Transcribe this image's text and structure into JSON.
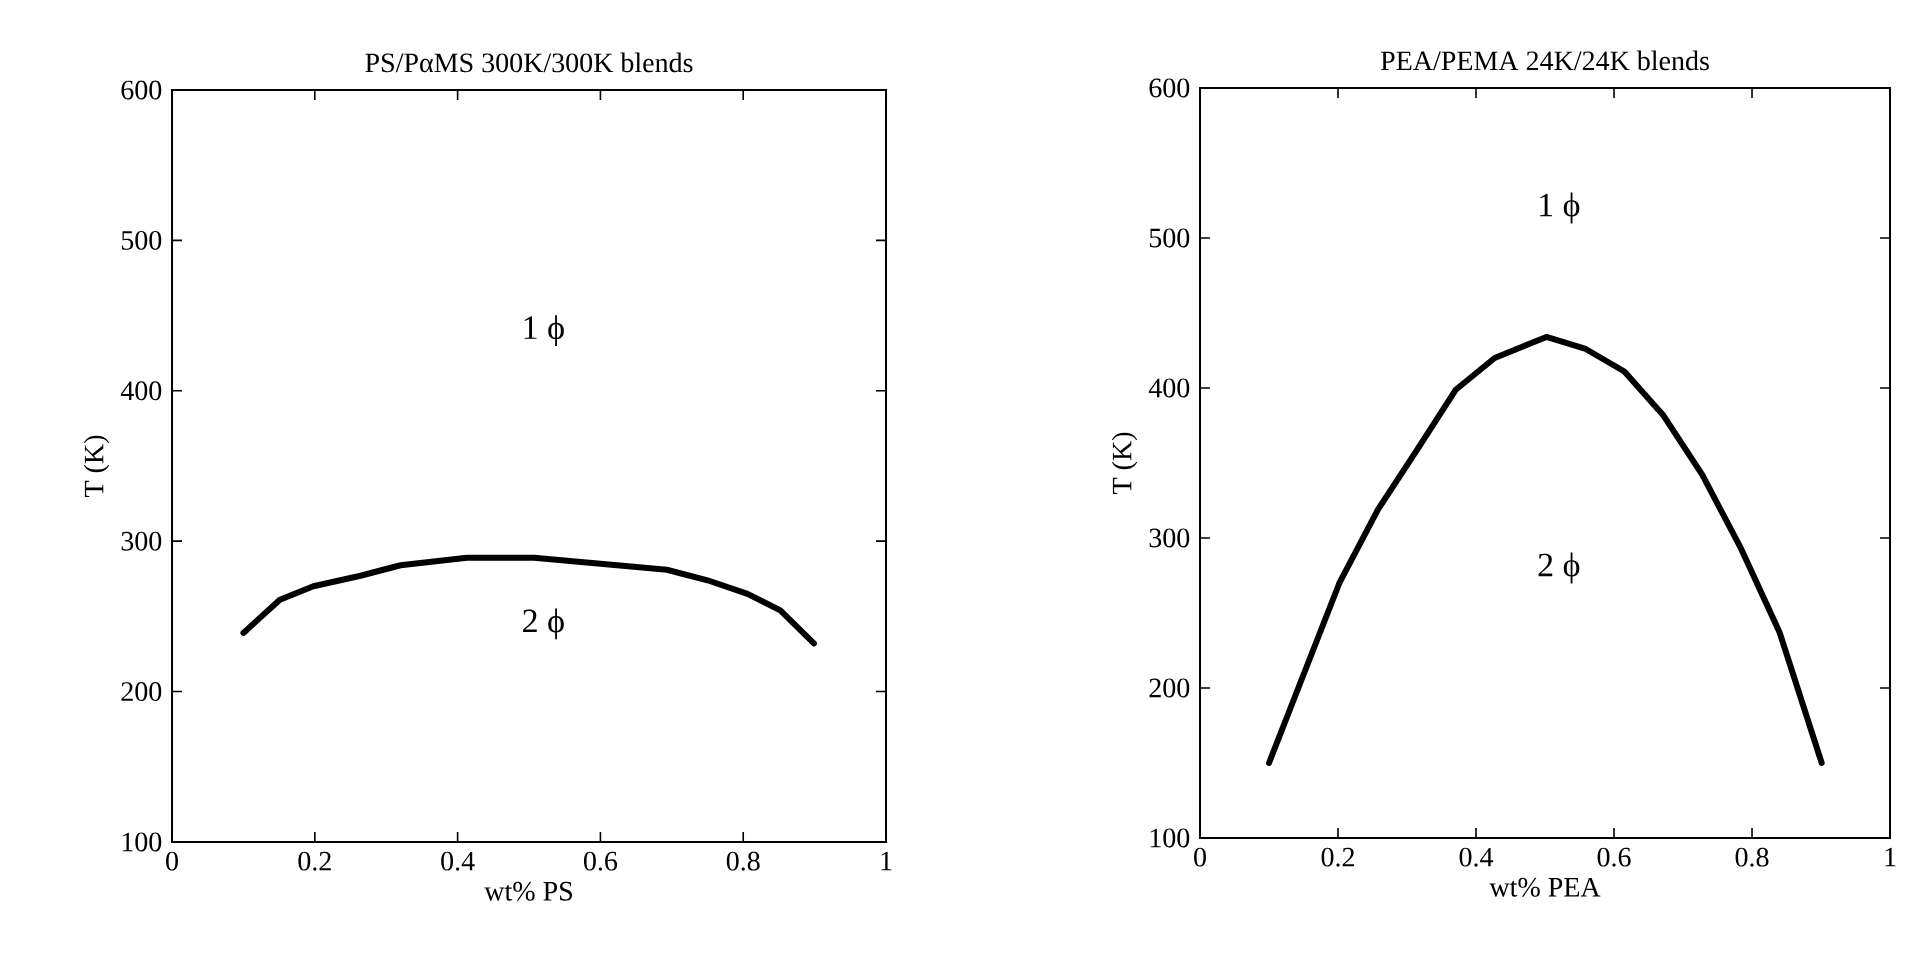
{
  "chart_data": [
    {
      "type": "line",
      "title": "PS/PαMS 300K/300K blends",
      "xlabel": "wt% PS",
      "ylabel": "T (K)",
      "xlim": [
        0,
        1
      ],
      "ylim": [
        100,
        600
      ],
      "xticks": [
        0,
        0.2,
        0.4,
        0.6,
        0.8,
        1
      ],
      "yticks": [
        100,
        200,
        300,
        400,
        500,
        600
      ],
      "line_style": "solid",
      "series": [
        {
          "color": "#000000",
          "x": [
            0.1,
            0.151,
            0.198,
            0.264,
            0.32,
            0.413,
            0.507,
            0.6,
            0.693,
            0.75,
            0.806,
            0.852,
            0.899
          ],
          "values": [
            239,
            261,
            270,
            277,
            284,
            289,
            289,
            285,
            281,
            274,
            265,
            254,
            232
          ]
        }
      ],
      "annotations": [
        "1 ϕ",
        "2 ϕ"
      ]
    },
    {
      "type": "line",
      "title": "PEA/PEMA 24K/24K blends",
      "xlabel": "wt% PEA",
      "ylabel": "T (K)",
      "xlim": [
        0,
        1
      ],
      "ylim": [
        100,
        600
      ],
      "xticks": [
        0,
        0.2,
        0.4,
        0.6,
        0.8,
        1
      ],
      "yticks": [
        100,
        200,
        300,
        400,
        500,
        600
      ],
      "line_style": "solid",
      "series": [
        {
          "color": "#000000",
          "x": [
            0.1,
            0.145,
            0.202,
            0.258,
            0.315,
            0.371,
            0.427,
            0.502,
            0.559,
            0.615,
            0.671,
            0.728,
            0.784,
            0.84,
            0.901
          ],
          "values": [
            150,
            203,
            270,
            319,
            359,
            399,
            420,
            434,
            426,
            411,
            382,
            342,
            293,
            237,
            150
          ]
        }
      ],
      "annotations": [
        "1 ϕ",
        "2 ϕ"
      ]
    }
  ]
}
